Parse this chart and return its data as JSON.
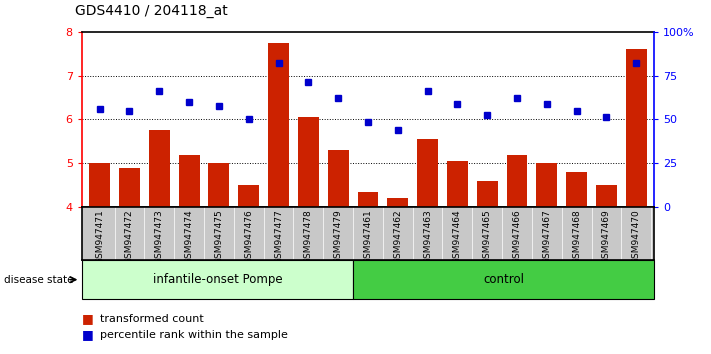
{
  "title": "GDS4410 / 204118_at",
  "samples": [
    "GSM947471",
    "GSM947472",
    "GSM947473",
    "GSM947474",
    "GSM947475",
    "GSM947476",
    "GSM947477",
    "GSM947478",
    "GSM947479",
    "GSM947461",
    "GSM947462",
    "GSM947463",
    "GSM947464",
    "GSM947465",
    "GSM947466",
    "GSM947467",
    "GSM947468",
    "GSM947469",
    "GSM947470"
  ],
  "red_values": [
    5.0,
    4.9,
    5.75,
    5.2,
    5.0,
    4.5,
    7.75,
    6.05,
    5.3,
    4.35,
    4.2,
    5.55,
    5.05,
    4.6,
    5.2,
    5.0,
    4.8,
    4.5,
    7.6
  ],
  "blue_values": [
    6.25,
    6.2,
    6.65,
    6.4,
    6.3,
    6.0,
    7.3,
    6.85,
    6.5,
    5.95,
    5.75,
    6.65,
    6.35,
    6.1,
    6.5,
    6.35,
    6.2,
    6.05,
    7.3
  ],
  "group1_label": "infantile-onset Pompe",
  "group2_label": "control",
  "group1_count": 9,
  "group2_count": 10,
  "ylim": [
    4.0,
    8.0
  ],
  "yticks_left": [
    4,
    5,
    6,
    7,
    8
  ],
  "right_yticks": [
    0,
    25,
    50,
    75,
    100
  ],
  "right_ylim": [
    0,
    100
  ],
  "bar_color": "#cc2200",
  "dot_color": "#0000cc",
  "group1_color": "#ccffcc",
  "group2_color": "#44cc44",
  "bg_color": "#c8c8c8",
  "legend_red_label": "transformed count",
  "legend_blue_label": "percentile rank within the sample"
}
